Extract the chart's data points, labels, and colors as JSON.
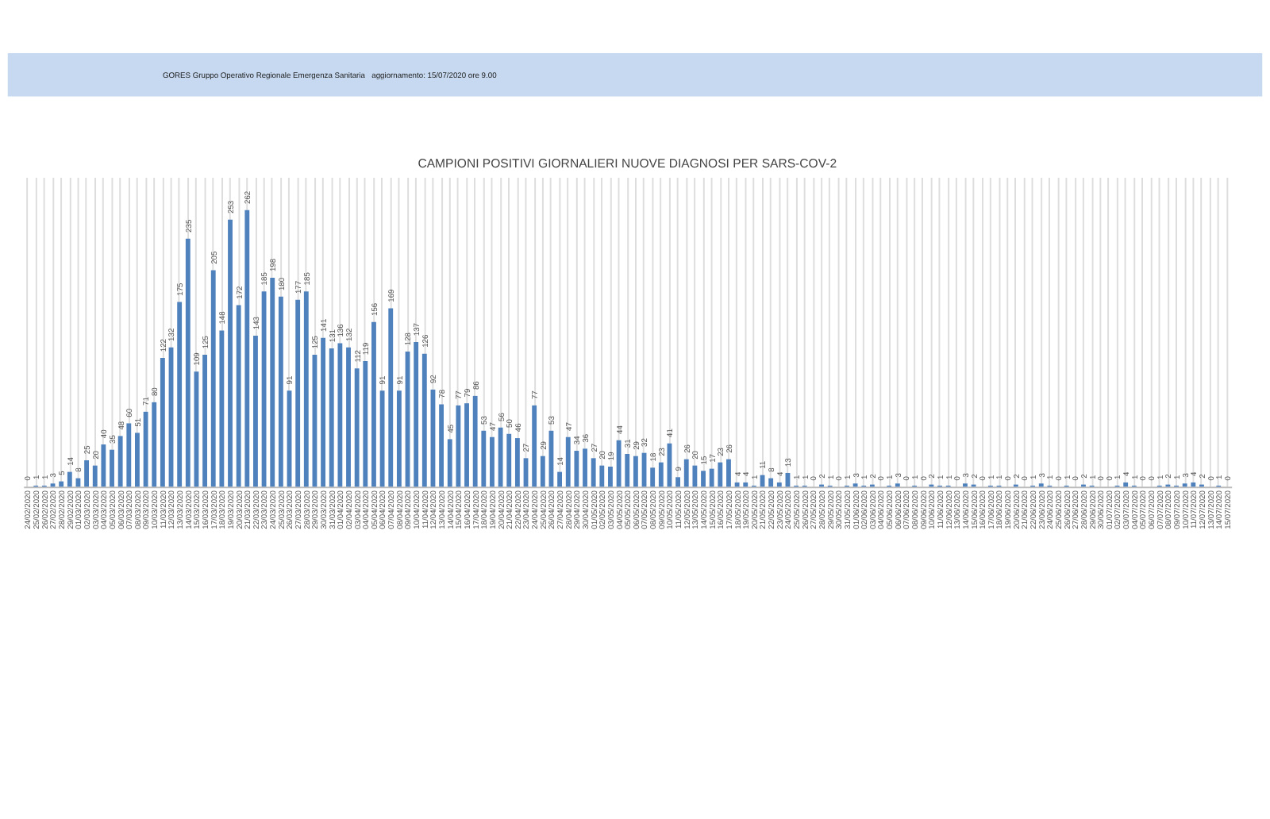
{
  "chart_data": {
    "type": "bar",
    "title": "CAMPIONI POSITIVI GIORNALIERI NUOVE DIAGNOSI PER SARS-COV-2",
    "annotations": [
      "GORES Gruppo Operativo Regionale Emergenza Sanitaria",
      "aggiornamento: 15/07/2020 ore 9.00"
    ],
    "categories": [
      "24/02/2020",
      "25/02/2020",
      "26/02/2020",
      "27/02/2020",
      "28/02/2020",
      "29/02/2020",
      "01/03/2020",
      "02/03/2020",
      "03/03/2020",
      "04/03/2020",
      "05/03/2020",
      "06/03/2020",
      "07/03/2020",
      "08/03/2020",
      "09/03/2020",
      "10/03/2020",
      "11/03/2020",
      "12/03/2020",
      "13/03/2020",
      "14/03/2020",
      "15/03/2020",
      "16/03/2020",
      "17/03/2020",
      "18/03/2020",
      "19/03/2020",
      "20/03/2020",
      "21/03/2020",
      "22/03/2020",
      "23/03/2020",
      "24/03/2020",
      "25/03/2020",
      "26/03/2020",
      "27/03/2020",
      "28/03/2020",
      "29/03/2020",
      "30/03/2020",
      "31/03/2020",
      "01/04/2020",
      "02/04/2020",
      "03/04/2020",
      "04/04/2020",
      "05/04/2020",
      "06/04/2020",
      "07/04/2020",
      "08/04/2020",
      "09/04/2020",
      "10/04/2020",
      "11/04/2020",
      "12/04/2020",
      "13/04/2020",
      "14/04/2020",
      "15/04/2020",
      "16/04/2020",
      "17/04/2020",
      "18/04/2020",
      "19/04/2020",
      "20/04/2020",
      "21/04/2020",
      "22/04/2020",
      "23/04/2020",
      "24/04/2020",
      "25/04/2020",
      "26/04/2020",
      "27/04/2020",
      "28/04/2020",
      "29/04/2020",
      "30/04/2020",
      "01/05/2020",
      "02/05/2020",
      "03/05/2020",
      "04/05/2020",
      "05/05/2020",
      "06/05/2020",
      "07/05/2020",
      "08/05/2020",
      "09/05/2020",
      "10/05/2020",
      "11/05/2020",
      "12/05/2020",
      "13/05/2020",
      "14/05/2020",
      "15/05/2020",
      "16/05/2020",
      "17/05/2020",
      "18/05/2020",
      "19/05/2020",
      "20/05/2020",
      "21/05/2020",
      "22/05/2020",
      "23/05/2020",
      "24/05/2020",
      "25/05/2020",
      "26/05/2020",
      "27/05/2020",
      "28/05/2020",
      "29/05/2020",
      "30/05/2020",
      "31/05/2020",
      "01/06/2020",
      "02/06/2020",
      "03/06/2020",
      "04/06/2020",
      "05/06/2020",
      "06/06/2020",
      "07/06/2020",
      "08/06/2020",
      "09/06/2020",
      "10/06/2020",
      "11/06/2020",
      "12/06/2020",
      "13/06/2020",
      "14/06/2020",
      "15/06/2020",
      "16/06/2020",
      "17/06/2020",
      "18/06/2020",
      "19/06/2020",
      "20/06/2020",
      "21/06/2020",
      "22/06/2020",
      "23/06/2020",
      "24/06/2020",
      "25/06/2020",
      "26/06/2020",
      "27/06/2020",
      "28/06/2020",
      "29/06/2020",
      "30/06/2020",
      "01/07/2020",
      "02/07/2020",
      "03/07/2020",
      "04/07/2020",
      "05/07/2020",
      "06/07/2020",
      "07/07/2020",
      "08/07/2020",
      "09/07/2020",
      "10/07/2020",
      "11/07/2020",
      "12/07/2020",
      "13/07/2020",
      "14/07/2020",
      "15/07/2020"
    ],
    "values": [
      0,
      1,
      1,
      3,
      5,
      14,
      8,
      25,
      20,
      40,
      35,
      48,
      60,
      51,
      71,
      80,
      122,
      132,
      175,
      235,
      109,
      125,
      205,
      148,
      253,
      172,
      262,
      143,
      185,
      198,
      180,
      91,
      177,
      185,
      125,
      141,
      131,
      136,
      132,
      112,
      119,
      156,
      91,
      169,
      91,
      128,
      137,
      126,
      92,
      78,
      45,
      77,
      79,
      86,
      53,
      47,
      56,
      50,
      46,
      27,
      77,
      29,
      53,
      14,
      47,
      34,
      36,
      27,
      20,
      19,
      44,
      31,
      29,
      32,
      18,
      23,
      41,
      9,
      26,
      20,
      15,
      17,
      23,
      26,
      4,
      4,
      1,
      11,
      8,
      4,
      13,
      1,
      1,
      0,
      2,
      1,
      0,
      1,
      3,
      1,
      2,
      0,
      1,
      3,
      0,
      1,
      0,
      2,
      1,
      1,
      0,
      3,
      2,
      0,
      1,
      1,
      0,
      2,
      0,
      1,
      3,
      1,
      0,
      1,
      0,
      2,
      1,
      0,
      0,
      1,
      4,
      1,
      0,
      0,
      1,
      2,
      1,
      3,
      4,
      2,
      0,
      1,
      0
    ],
    "color": "#4f81bd",
    "data_labels": true,
    "grid": "x"
  }
}
